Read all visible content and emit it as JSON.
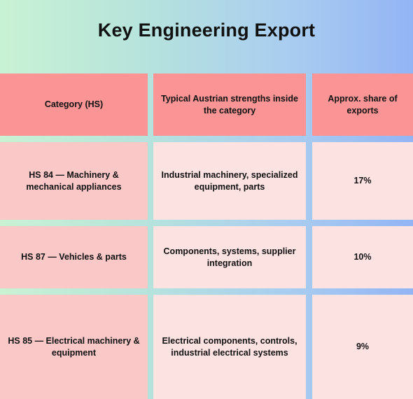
{
  "title": "Key Engineering Export",
  "table": {
    "headers": [
      "Category (HS)",
      "Typical Austrian strengths inside the category",
      "Approx. share of exports"
    ],
    "rows": [
      {
        "category": "HS 84 — Machinery & mechanical appliances",
        "strengths": "Industrial machinery, specialized equipment, parts",
        "share": "17%"
      },
      {
        "category": "HS 87 — Vehicles & parts",
        "strengths": "Components, systems, supplier integration",
        "share": "10%"
      },
      {
        "category": "HS 85 — Electrical machinery & equipment",
        "strengths": "Electrical components, controls, industrial electrical systems",
        "share": "9%"
      }
    ]
  },
  "colors": {
    "header_bg": "#fb9595",
    "first_column_bg": "#fbc8c8",
    "body_bg": "#fde2e2"
  }
}
